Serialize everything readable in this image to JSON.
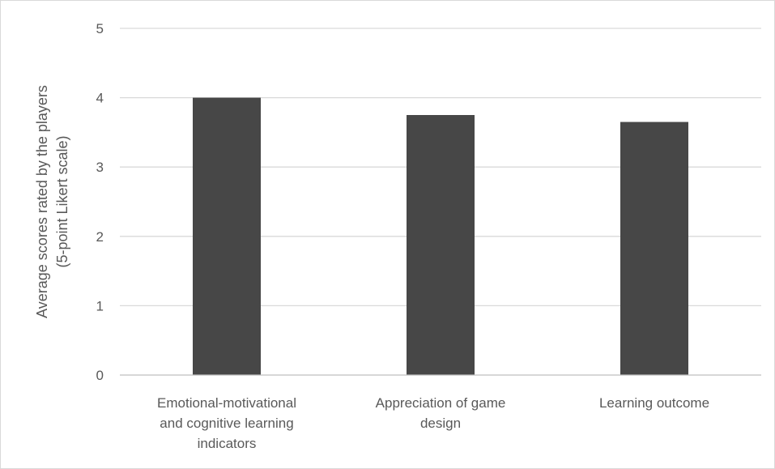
{
  "chart_data": {
    "type": "bar",
    "title": "",
    "xlabel": "",
    "ylabel": "Average scores rated by the players (5-point Likert scale)",
    "ylabel_lines": [
      "Average scores rated by the players",
      "(5-point Likert scale)"
    ],
    "categories": [
      "Emotional-motivational and cognitive learning indicators",
      "Appreciation of game design",
      "Learning outcome"
    ],
    "category_lines": [
      [
        "Emotional-motivational",
        "and cognitive learning",
        "indicators"
      ],
      [
        "Appreciation of game",
        "design"
      ],
      [
        "Learning outcome"
      ]
    ],
    "values": [
      4.0,
      3.75,
      3.65
    ],
    "ylim": [
      0,
      5
    ],
    "yticks": [
      0,
      1,
      2,
      3,
      4,
      5
    ],
    "grid": true,
    "legend": "none",
    "colors": {
      "bar": "#474747",
      "grid": "#d9d9d9",
      "axis": "#bfbfbf",
      "text": "#595959",
      "border": "#d9d9d9"
    }
  }
}
